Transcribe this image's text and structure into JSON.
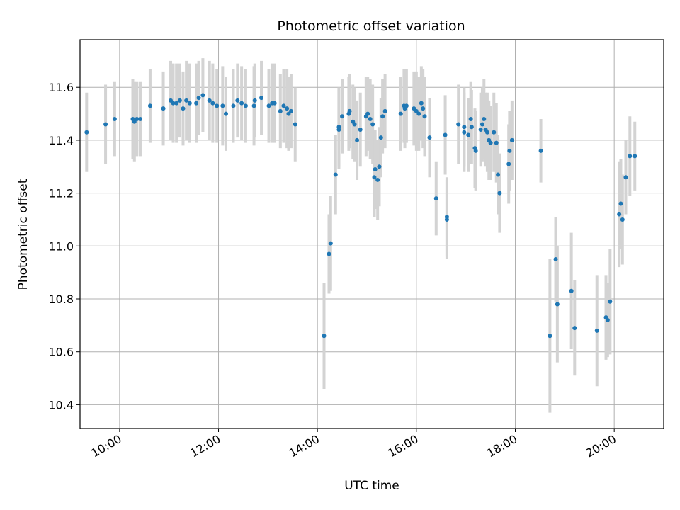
{
  "chart_data": {
    "type": "scatter",
    "title": "Photometric offset variation",
    "xlabel": "UTC time",
    "ylabel": "Photometric offset",
    "x_axis_type": "time",
    "xlim": [
      "09:12",
      "21:00"
    ],
    "ylim": [
      10.31,
      11.78
    ],
    "x_ticks": [
      "10:00",
      "12:00",
      "14:00",
      "16:00",
      "18:00",
      "20:00"
    ],
    "y_ticks": [
      "10.4",
      "10.6",
      "10.8",
      "11.0",
      "11.2",
      "11.4",
      "11.6"
    ],
    "grid": true,
    "point_color": "#1f77b4",
    "errorbar_color": "#d3d3d3",
    "series": [
      {
        "points": [
          {
            "x": "09:20",
            "y": 11.43,
            "err": 0.15
          },
          {
            "x": "09:43",
            "y": 11.46,
            "err": 0.15
          },
          {
            "x": "09:54",
            "y": 11.48,
            "err": 0.14
          },
          {
            "x": "10:16",
            "y": 11.48,
            "err": 0.15
          },
          {
            "x": "10:18",
            "y": 11.47,
            "err": 0.15
          },
          {
            "x": "10:21",
            "y": 11.48,
            "err": 0.14
          },
          {
            "x": "10:25",
            "y": 11.48,
            "err": 0.14
          },
          {
            "x": "10:37",
            "y": 11.53,
            "err": 0.14
          },
          {
            "x": "10:53",
            "y": 11.52,
            "err": 0.14
          },
          {
            "x": "11:02",
            "y": 11.55,
            "err": 0.15
          },
          {
            "x": "11:05",
            "y": 11.54,
            "err": 0.15
          },
          {
            "x": "11:09",
            "y": 11.54,
            "err": 0.15
          },
          {
            "x": "11:13",
            "y": 11.55,
            "err": 0.14
          },
          {
            "x": "11:17",
            "y": 11.52,
            "err": 0.14
          },
          {
            "x": "11:21",
            "y": 11.55,
            "err": 0.15
          },
          {
            "x": "11:25",
            "y": 11.54,
            "err": 0.15
          },
          {
            "x": "11:33",
            "y": 11.54,
            "err": 0.15
          },
          {
            "x": "11:36",
            "y": 11.56,
            "err": 0.14
          },
          {
            "x": "11:41",
            "y": 11.57,
            "err": 0.14
          },
          {
            "x": "11:49",
            "y": 11.55,
            "err": 0.15
          },
          {
            "x": "11:53",
            "y": 11.54,
            "err": 0.15
          },
          {
            "x": "11:58",
            "y": 11.53,
            "err": 0.14
          },
          {
            "x": "12:05",
            "y": 11.53,
            "err": 0.15
          },
          {
            "x": "12:09",
            "y": 11.5,
            "err": 0.14
          },
          {
            "x": "12:18",
            "y": 11.53,
            "err": 0.14
          },
          {
            "x": "12:23",
            "y": 11.55,
            "err": 0.14
          },
          {
            "x": "12:28",
            "y": 11.54,
            "err": 0.14
          },
          {
            "x": "12:33",
            "y": 11.53,
            "err": 0.14
          },
          {
            "x": "12:43",
            "y": 11.53,
            "err": 0.15
          },
          {
            "x": "12:44",
            "y": 11.55,
            "err": 0.14
          },
          {
            "x": "12:52",
            "y": 11.56,
            "err": 0.14
          },
          {
            "x": "13:01",
            "y": 11.53,
            "err": 0.14
          },
          {
            "x": "13:05",
            "y": 11.54,
            "err": 0.15
          },
          {
            "x": "13:08",
            "y": 11.54,
            "err": 0.15
          },
          {
            "x": "13:15",
            "y": 11.51,
            "err": 0.14
          },
          {
            "x": "13:19",
            "y": 11.53,
            "err": 0.14
          },
          {
            "x": "13:23",
            "y": 11.52,
            "err": 0.15
          },
          {
            "x": "13:25",
            "y": 11.5,
            "err": 0.14
          },
          {
            "x": "13:28",
            "y": 11.51,
            "err": 0.14
          },
          {
            "x": "13:33",
            "y": 11.46,
            "err": 0.14
          },
          {
            "x": "14:08",
            "y": 10.66,
            "err": 0.2
          },
          {
            "x": "14:14",
            "y": 10.97,
            "err": 0.15
          },
          {
            "x": "14:16",
            "y": 11.01,
            "err": 0.18
          },
          {
            "x": "14:22",
            "y": 11.27,
            "err": 0.15
          },
          {
            "x": "14:26",
            "y": 11.44,
            "err": 0.15
          },
          {
            "x": "14:26",
            "y": 11.45,
            "err": 0.15
          },
          {
            "x": "14:30",
            "y": 11.49,
            "err": 0.14
          },
          {
            "x": "14:38",
            "y": 11.5,
            "err": 0.14
          },
          {
            "x": "14:39",
            "y": 11.51,
            "err": 0.14
          },
          {
            "x": "14:43",
            "y": 11.47,
            "err": 0.14
          },
          {
            "x": "14:45",
            "y": 11.46,
            "err": 0.14
          },
          {
            "x": "14:48",
            "y": 11.4,
            "err": 0.15
          },
          {
            "x": "14:52",
            "y": 11.44,
            "err": 0.14
          },
          {
            "x": "14:59",
            "y": 11.49,
            "err": 0.15
          },
          {
            "x": "15:01",
            "y": 11.5,
            "err": 0.14
          },
          {
            "x": "15:04",
            "y": 11.48,
            "err": 0.15
          },
          {
            "x": "15:07",
            "y": 11.46,
            "err": 0.15
          },
          {
            "x": "15:09",
            "y": 11.26,
            "err": 0.15
          },
          {
            "x": "15:10",
            "y": 11.29,
            "err": 0.15
          },
          {
            "x": "15:13",
            "y": 11.25,
            "err": 0.15
          },
          {
            "x": "15:15",
            "y": 11.3,
            "err": 0.15
          },
          {
            "x": "15:17",
            "y": 11.41,
            "err": 0.15
          },
          {
            "x": "15:19",
            "y": 11.49,
            "err": 0.14
          },
          {
            "x": "15:22",
            "y": 11.51,
            "err": 0.14
          },
          {
            "x": "15:41",
            "y": 11.5,
            "err": 0.14
          },
          {
            "x": "15:45",
            "y": 11.53,
            "err": 0.14
          },
          {
            "x": "15:46",
            "y": 11.52,
            "err": 0.15
          },
          {
            "x": "15:48",
            "y": 11.53,
            "err": 0.14
          },
          {
            "x": "15:57",
            "y": 11.52,
            "err": 0.14
          },
          {
            "x": "16:00",
            "y": 11.51,
            "err": 0.15
          },
          {
            "x": "16:03",
            "y": 11.5,
            "err": 0.14
          },
          {
            "x": "16:06",
            "y": 11.54,
            "err": 0.14
          },
          {
            "x": "16:08",
            "y": 11.52,
            "err": 0.15
          },
          {
            "x": "16:10",
            "y": 11.49,
            "err": 0.15
          },
          {
            "x": "16:16",
            "y": 11.41,
            "err": 0.15
          },
          {
            "x": "16:24",
            "y": 11.18,
            "err": 0.14
          },
          {
            "x": "16:35",
            "y": 11.42,
            "err": 0.15
          },
          {
            "x": "16:37",
            "y": 11.11,
            "err": 0.15
          },
          {
            "x": "16:37",
            "y": 11.1,
            "err": 0.15
          },
          {
            "x": "16:51",
            "y": 11.46,
            "err": 0.15
          },
          {
            "x": "16:58",
            "y": 11.45,
            "err": 0.15
          },
          {
            "x": "16:58",
            "y": 11.43,
            "err": 0.15
          },
          {
            "x": "17:03",
            "y": 11.42,
            "err": 0.14
          },
          {
            "x": "17:06",
            "y": 11.48,
            "err": 0.14
          },
          {
            "x": "17:07",
            "y": 11.45,
            "err": 0.14
          },
          {
            "x": "17:11",
            "y": 11.37,
            "err": 0.15
          },
          {
            "x": "17:12",
            "y": 11.36,
            "err": 0.15
          },
          {
            "x": "17:18",
            "y": 11.44,
            "err": 0.14
          },
          {
            "x": "17:20",
            "y": 11.46,
            "err": 0.14
          },
          {
            "x": "17:22",
            "y": 11.48,
            "err": 0.15
          },
          {
            "x": "17:24",
            "y": 11.44,
            "err": 0.14
          },
          {
            "x": "17:26",
            "y": 11.43,
            "err": 0.15
          },
          {
            "x": "17:28",
            "y": 11.4,
            "err": 0.15
          },
          {
            "x": "17:30",
            "y": 11.39,
            "err": 0.14
          },
          {
            "x": "17:34",
            "y": 11.43,
            "err": 0.15
          },
          {
            "x": "17:37",
            "y": 11.39,
            "err": 0.15
          },
          {
            "x": "17:39",
            "y": 11.27,
            "err": 0.15
          },
          {
            "x": "17:41",
            "y": 11.2,
            "err": 0.15
          },
          {
            "x": "17:52",
            "y": 11.31,
            "err": 0.15
          },
          {
            "x": "17:53",
            "y": 11.36,
            "err": 0.15
          },
          {
            "x": "17:56",
            "y": 11.4,
            "err": 0.15
          },
          {
            "x": "18:31",
            "y": 11.36,
            "err": 0.12
          },
          {
            "x": "18:42",
            "y": 10.66,
            "err": 0.29
          },
          {
            "x": "18:49",
            "y": 10.95,
            "err": 0.16
          },
          {
            "x": "18:51",
            "y": 10.78,
            "err": 0.22
          },
          {
            "x": "19:08",
            "y": 10.83,
            "err": 0.22
          },
          {
            "x": "19:12",
            "y": 10.69,
            "err": 0.18
          },
          {
            "x": "19:39",
            "y": 10.68,
            "err": 0.21
          },
          {
            "x": "19:50",
            "y": 10.73,
            "err": 0.16
          },
          {
            "x": "19:52",
            "y": 10.72,
            "err": 0.14
          },
          {
            "x": "19:55",
            "y": 10.79,
            "err": 0.2
          },
          {
            "x": "20:06",
            "y": 11.12,
            "err": 0.2
          },
          {
            "x": "20:08",
            "y": 11.16,
            "err": 0.17
          },
          {
            "x": "20:10",
            "y": 11.1,
            "err": 0.17
          },
          {
            "x": "20:14",
            "y": 11.26,
            "err": 0.14
          },
          {
            "x": "20:19",
            "y": 11.34,
            "err": 0.15
          },
          {
            "x": "20:25",
            "y": 11.34,
            "err": 0.13
          }
        ]
      }
    ]
  }
}
